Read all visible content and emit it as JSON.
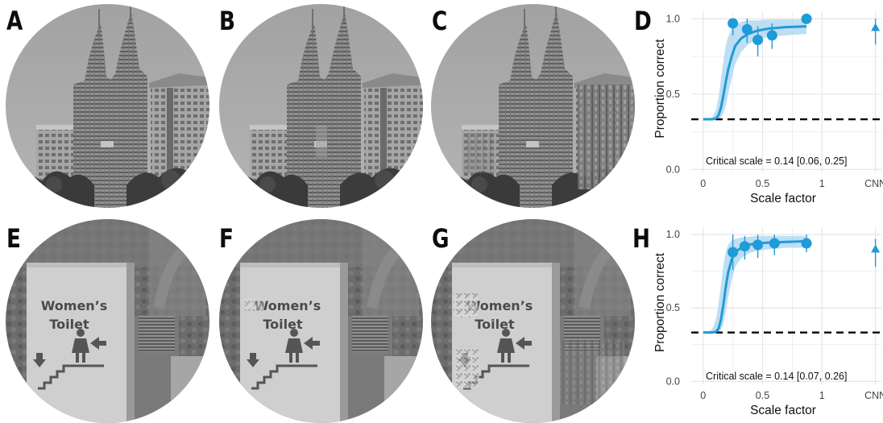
{
  "figure": {
    "panel_labels": [
      "A",
      "B",
      "C",
      "D",
      "E",
      "F",
      "G",
      "H"
    ],
    "sign": {
      "line1": "Women’s",
      "line2": "Toilet"
    }
  },
  "chart_data": [
    {
      "type": "scatter",
      "panel": "D",
      "xlabel": "Scale factor",
      "ylabel": "Proportion correct",
      "xlim": [
        -0.1,
        1.5
      ],
      "ylim": [
        -0.02,
        1.05
      ],
      "x_ticks": [
        "0",
        "0.5",
        "1",
        "CNN"
      ],
      "x_tick_values": [
        0,
        0.5,
        1,
        1.45
      ],
      "y_ticks": [
        "0.0",
        "0.5",
        "1.0"
      ],
      "y_tick_values": [
        0.0,
        0.5,
        1.0
      ],
      "grid": true,
      "chance_level": 0.333,
      "points": [
        {
          "x": 0.25,
          "y": 0.97,
          "lo": 0.89,
          "hi": 1.0
        },
        {
          "x": 0.37,
          "y": 0.93,
          "lo": 0.84,
          "hi": 1.0
        },
        {
          "x": 0.46,
          "y": 0.86,
          "lo": 0.75,
          "hi": 0.95
        },
        {
          "x": 0.58,
          "y": 0.89,
          "lo": 0.8,
          "hi": 0.97
        },
        {
          "x": 0.87,
          "y": 1.0,
          "lo": 0.97,
          "hi": 1.0
        }
      ],
      "cnn_point": {
        "x": 1.45,
        "y": 0.94,
        "lo": 0.83,
        "hi": 1.0
      },
      "fit_curve": {
        "x": [
          0.0,
          0.04,
          0.08,
          0.11,
          0.13,
          0.15,
          0.17,
          0.19,
          0.21,
          0.24,
          0.27,
          0.32,
          0.38,
          0.45,
          0.55,
          0.7,
          0.87
        ],
        "y": [
          0.333,
          0.333,
          0.333,
          0.34,
          0.36,
          0.41,
          0.49,
          0.58,
          0.66,
          0.75,
          0.82,
          0.87,
          0.9,
          0.92,
          0.935,
          0.945,
          0.95
        ],
        "lo": [
          0.333,
          0.333,
          0.333,
          0.333,
          0.335,
          0.345,
          0.37,
          0.42,
          0.5,
          0.6,
          0.7,
          0.78,
          0.83,
          0.86,
          0.88,
          0.89,
          0.9
        ],
        "hi": [
          0.333,
          0.333,
          0.35,
          0.4,
          0.48,
          0.6,
          0.72,
          0.82,
          0.88,
          0.93,
          0.96,
          0.98,
          0.99,
          0.99,
          0.995,
          0.995,
          0.995
        ]
      },
      "annotation": "Critical scale = 0.14 [0.06, 0.25]",
      "colors": {
        "series": "#1f9bd7",
        "band": "#a8d3ef",
        "grid": "#e6e6e6"
      }
    },
    {
      "type": "scatter",
      "panel": "H",
      "xlabel": "Scale factor",
      "ylabel": "Proportion correct",
      "xlim": [
        -0.1,
        1.5
      ],
      "ylim": [
        -0.02,
        1.05
      ],
      "x_ticks": [
        "0",
        "0.5",
        "1",
        "CNN"
      ],
      "x_tick_values": [
        0,
        0.5,
        1,
        1.45
      ],
      "y_ticks": [
        "0.0",
        "0.5",
        "1.0"
      ],
      "y_tick_values": [
        0.0,
        0.5,
        1.0
      ],
      "grid": true,
      "chance_level": 0.333,
      "points": [
        {
          "x": 0.25,
          "y": 0.88,
          "lo": 0.76,
          "hi": 1.0
        },
        {
          "x": 0.35,
          "y": 0.92,
          "lo": 0.83,
          "hi": 0.99
        },
        {
          "x": 0.46,
          "y": 0.93,
          "lo": 0.84,
          "hi": 1.0
        },
        {
          "x": 0.6,
          "y": 0.94,
          "lo": 0.86,
          "hi": 1.0
        },
        {
          "x": 0.87,
          "y": 0.94,
          "lo": 0.88,
          "hi": 1.0
        }
      ],
      "cnn_point": {
        "x": 1.45,
        "y": 0.9,
        "lo": 0.78,
        "hi": 0.97
      },
      "fit_curve": {
        "x": [
          0.0,
          0.04,
          0.08,
          0.11,
          0.13,
          0.15,
          0.17,
          0.19,
          0.21,
          0.24,
          0.27,
          0.32,
          0.38,
          0.45,
          0.55,
          0.7,
          0.87
        ],
        "y": [
          0.333,
          0.333,
          0.333,
          0.34,
          0.36,
          0.42,
          0.52,
          0.64,
          0.74,
          0.83,
          0.88,
          0.91,
          0.93,
          0.94,
          0.945,
          0.95,
          0.955
        ],
        "lo": [
          0.333,
          0.333,
          0.333,
          0.333,
          0.335,
          0.35,
          0.39,
          0.47,
          0.57,
          0.69,
          0.78,
          0.84,
          0.87,
          0.89,
          0.9,
          0.91,
          0.91
        ],
        "hi": [
          0.333,
          0.333,
          0.36,
          0.43,
          0.53,
          0.66,
          0.79,
          0.88,
          0.93,
          0.96,
          0.97,
          0.98,
          0.985,
          0.99,
          0.99,
          0.99,
          0.99
        ]
      },
      "annotation": "Critical scale = 0.14 [0.07, 0.26]",
      "colors": {
        "series": "#1f9bd7",
        "band": "#a8d3ef",
        "grid": "#e6e6e6"
      }
    }
  ]
}
